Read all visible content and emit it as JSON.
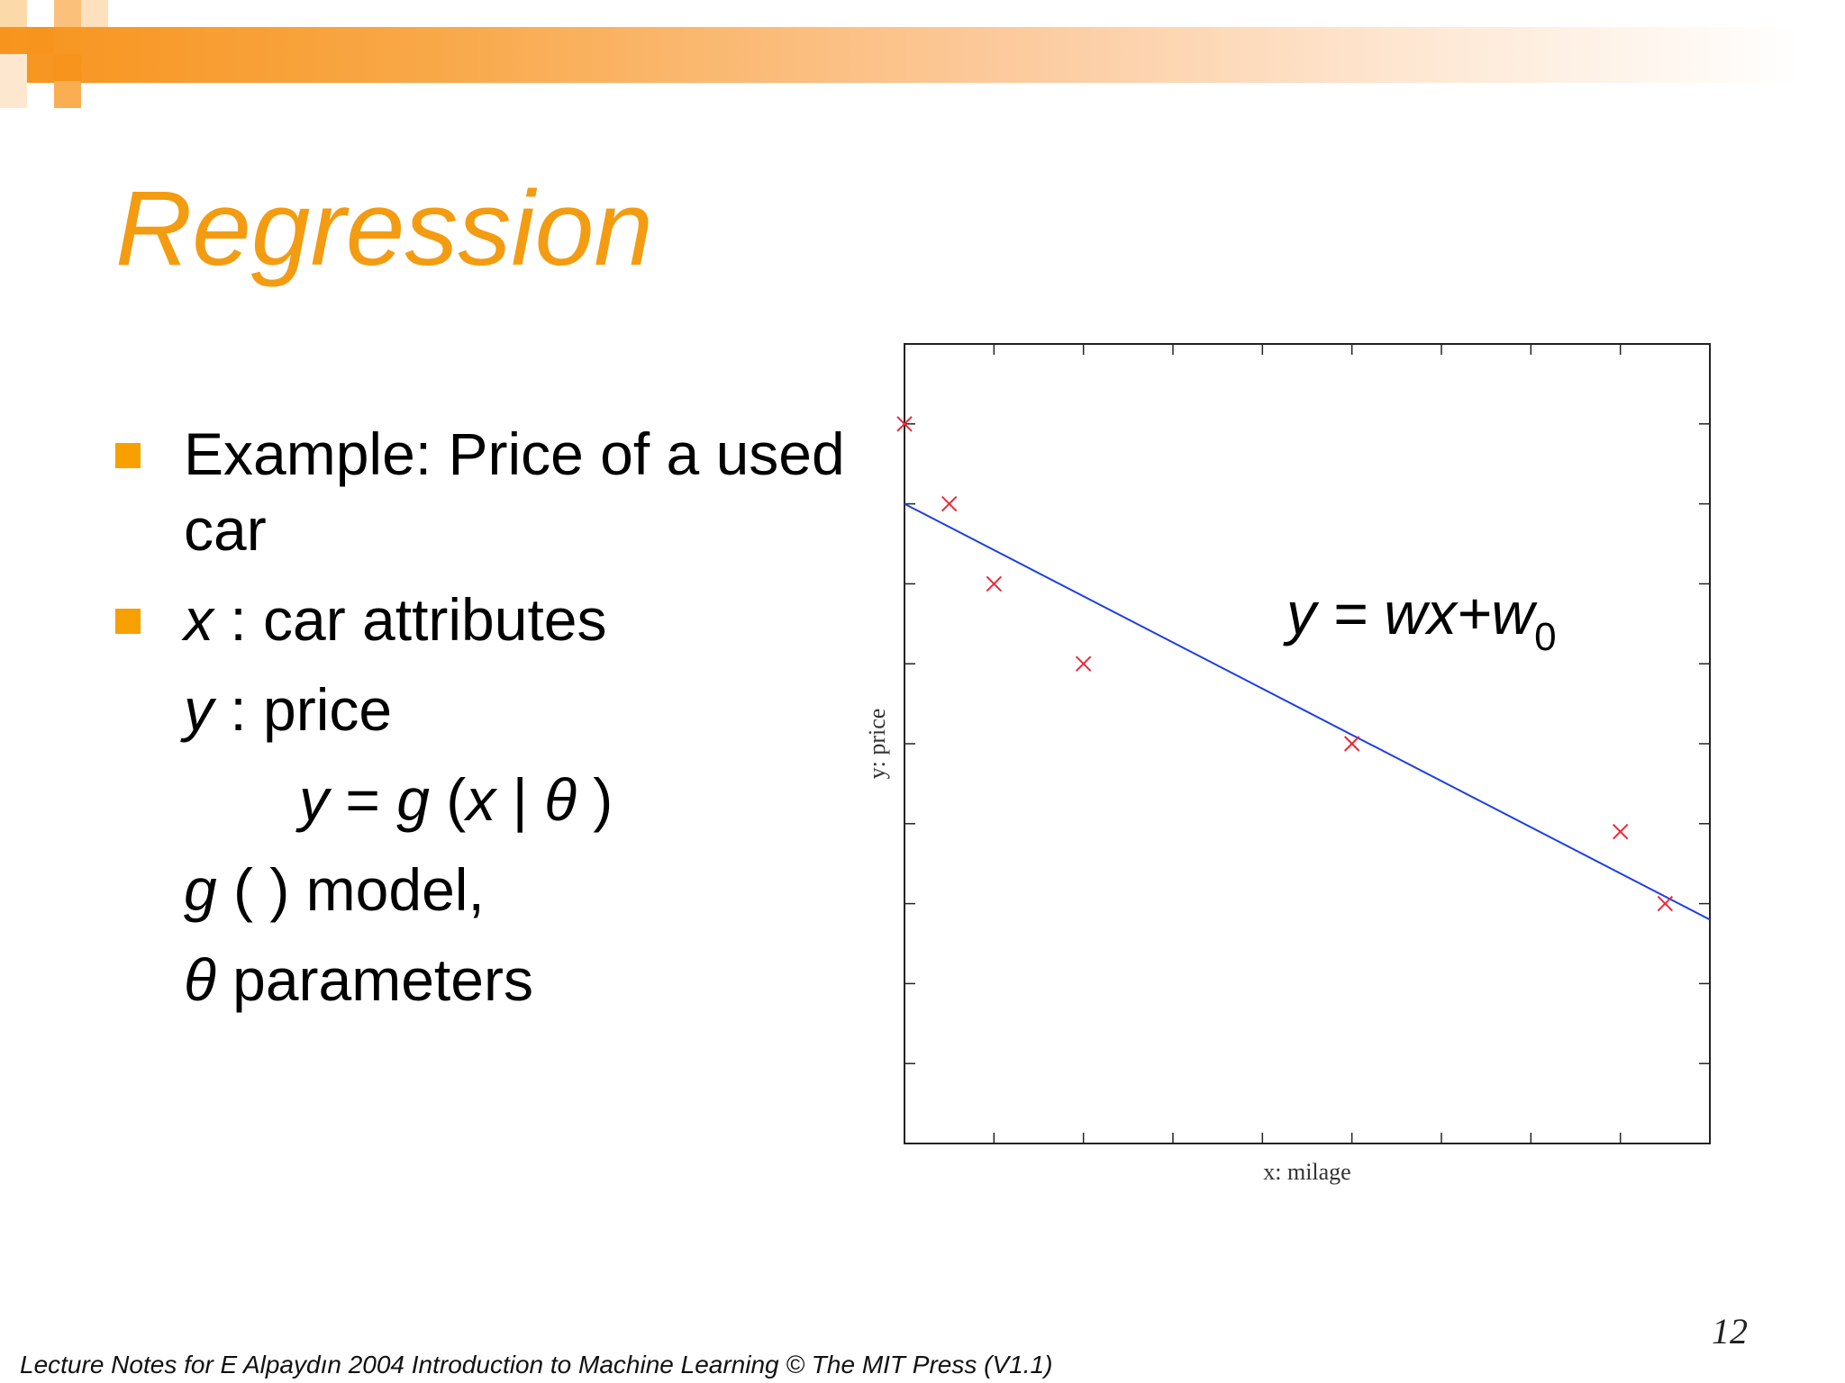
{
  "slide": {
    "title": "Regression",
    "bullets": [
      {
        "line1": "Example: Price of a used",
        "line2": "car"
      },
      {
        "var": "x",
        "text": " : car attributes"
      }
    ],
    "sub_lines": {
      "y_var": "y",
      "y_text": " : price",
      "formula_y": "y",
      "formula_eq": " = ",
      "formula_g": "g",
      "formula_open": " (",
      "formula_x": "x",
      "formula_bar": " | ",
      "formula_theta": "θ",
      "formula_close": " )",
      "g_var": "g",
      "g_text": " ( ) model,",
      "theta_var": "θ",
      "theta_text": " parameters"
    },
    "equation": {
      "main": "y = wx+w",
      "sub": "0"
    },
    "page_number": "12",
    "footer": "Lecture Notes for E Alpaydın 2004 Introduction to Machine Learning © The MIT Press (V1.1)"
  },
  "colors": {
    "accent": "#f39c12",
    "bullet": "#f7a000",
    "line": "#1f3fe0",
    "points": "#e8293a"
  },
  "chart_data": {
    "type": "scatter",
    "xlabel": "x: milage",
    "ylabel": "y: price",
    "xlim": [
      0,
      9
    ],
    "ylim": [
      0,
      10
    ],
    "x_ticks": 9,
    "y_ticks": 10,
    "points": [
      {
        "x": 0.0,
        "y": 9.0
      },
      {
        "x": 0.5,
        "y": 8.0
      },
      {
        "x": 1.0,
        "y": 7.0
      },
      {
        "x": 2.0,
        "y": 6.0
      },
      {
        "x": 5.0,
        "y": 5.0
      },
      {
        "x": 8.0,
        "y": 3.9
      },
      {
        "x": 8.5,
        "y": 3.0
      }
    ],
    "fit_line": {
      "x": [
        0,
        9
      ],
      "y": [
        8.0,
        2.8
      ]
    }
  }
}
